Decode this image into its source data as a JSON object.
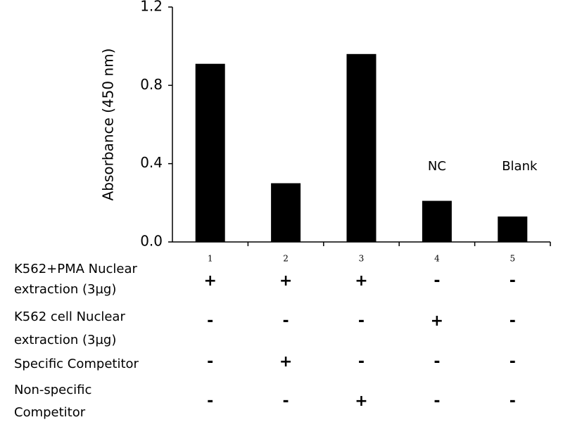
{
  "chart_data": {
    "type": "bar",
    "y_label": "Absorbance (450 nm)",
    "categories": [
      "1",
      "2",
      "3",
      "4",
      "5"
    ],
    "values": [
      0.91,
      0.3,
      0.96,
      0.21,
      0.13
    ],
    "bar_labels": [
      null,
      null,
      null,
      "NC",
      "Blank"
    ],
    "color": "#000000",
    "ylim": [
      0,
      1.2
    ],
    "yticks": [
      {
        "value": 0,
        "label": "0.0"
      },
      0.4,
      0.8,
      1.2
    ],
    "grid": false
  },
  "table": {
    "rows": [
      {
        "label": [
          "K562+PMA Nuclear",
          "extraction (3µg)"
        ],
        "cells": [
          "+",
          "+",
          "+",
          "-",
          "-"
        ]
      },
      {
        "label": [
          "K562 cell Nuclear",
          "extraction (3µg)"
        ],
        "cells": [
          "-",
          "-",
          "-",
          "+",
          "-"
        ]
      },
      {
        "label": [
          "Specific Competitor"
        ],
        "cells": [
          "-",
          "+",
          "-",
          "-",
          "-"
        ]
      },
      {
        "label": [
          "Non-specific",
          "Competitor"
        ],
        "cells": [
          "-",
          "-",
          "+",
          "-",
          "-"
        ]
      }
    ]
  }
}
